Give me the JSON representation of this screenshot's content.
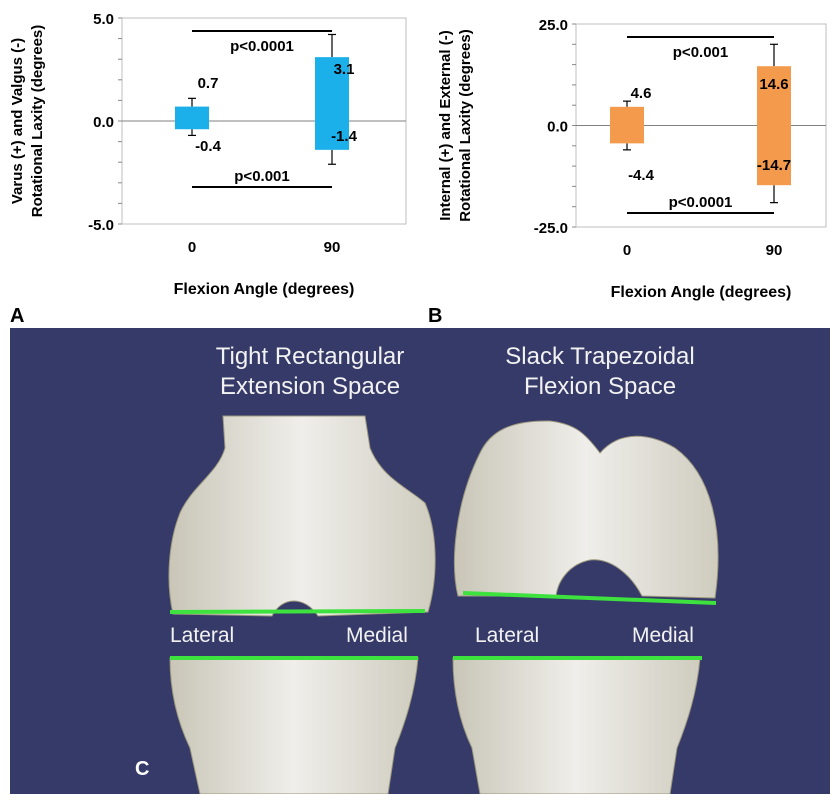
{
  "chart_data": [
    {
      "type": "bar",
      "panel": "A",
      "categories": [
        "0",
        "90"
      ],
      "series": [
        {
          "values": [
            0.7,
            3.1
          ],
          "error": [
            0.4,
            1.1
          ]
        },
        {
          "values": [
            -0.4,
            -1.4
          ],
          "error": [
            0.3,
            0.7
          ]
        }
      ],
      "bar_color": "#1cb0ea",
      "xlabel": "Flexion Angle (degrees)",
      "ylabel_lines": [
        "Varus (+) and Valgus (-)",
        "Rotational Laxity (degrees)"
      ],
      "yticks": [
        "5.0",
        "0.0",
        "-5.0"
      ],
      "ylim": [
        -5,
        5
      ],
      "value_labels": [
        [
          "0.7",
          "-0.4"
        ],
        [
          "3.1",
          "-1.4"
        ]
      ],
      "annotations": [
        {
          "text": "p<0.0001",
          "position": "top"
        },
        {
          "text": "p<0.001",
          "position": "bottom"
        }
      ]
    },
    {
      "type": "bar",
      "panel": "B",
      "categories": [
        "0",
        "90"
      ],
      "series": [
        {
          "values": [
            4.6,
            14.6
          ],
          "error": [
            1.4,
            5.4
          ]
        },
        {
          "values": [
            -4.4,
            -14.7
          ],
          "error": [
            1.6,
            4.3
          ]
        }
      ],
      "bar_color": "#f39a4c",
      "xlabel": "Flexion Angle (degrees)",
      "ylabel_lines": [
        "Internal (+) and External (-)",
        "Rotational Laxity (degrees)"
      ],
      "yticks": [
        "25.0",
        "0.0",
        "-25.0"
      ],
      "ylim": [
        -25,
        25
      ],
      "value_labels": [
        [
          "4.6",
          "-4.4"
        ],
        [
          "14.6",
          "-14.7"
        ]
      ],
      "annotations": [
        {
          "text": "p<0.001",
          "position": "top"
        },
        {
          "text": "p<0.0001",
          "position": "bottom"
        }
      ]
    }
  ],
  "figure_c": {
    "left_heading": [
      "Tight Rectangular",
      "Extension Space"
    ],
    "right_heading": [
      "Slack Trapezoidal",
      "Flexion Space"
    ],
    "left_lateral": "Lateral",
    "left_medial": "Medial",
    "right_lateral": "Lateral",
    "right_medial": "Medial",
    "line_color": "#3ee23e",
    "bone_color": "#ecebe6"
  },
  "panel_letters": {
    "a": "A",
    "b": "B",
    "c": "C"
  }
}
